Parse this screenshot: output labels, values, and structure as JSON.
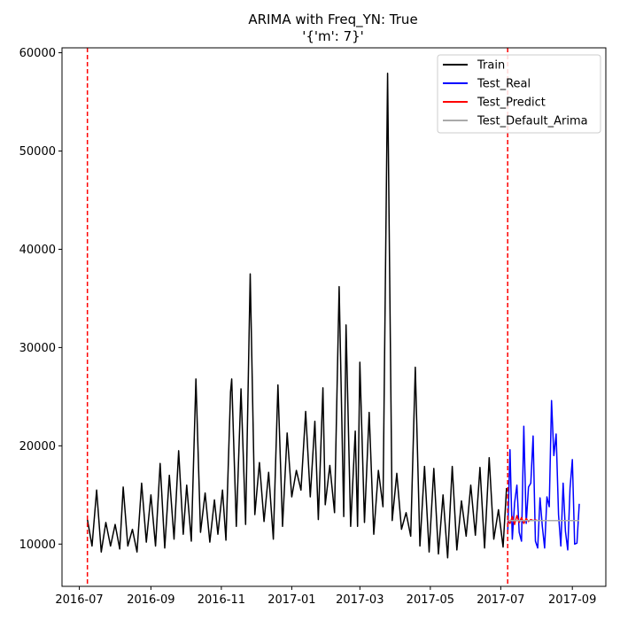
{
  "chart_data": {
    "type": "line",
    "title": "ARIMA with Freq_YN: True",
    "subtitle": "'{'m': 7}'",
    "xlabel": "",
    "ylabel": "",
    "xlim": [
      "2016-06-16",
      "2017-09-30"
    ],
    "ylim": [
      5700,
      60500
    ],
    "x_ticks": [
      "2016-07",
      "2016-09",
      "2016-11",
      "2017-01",
      "2017-03",
      "2017-05",
      "2017-07",
      "2017-09"
    ],
    "y_ticks": [
      10000,
      20000,
      30000,
      40000,
      50000,
      60000
    ],
    "grid": false,
    "legend_position": "top-right",
    "vlines": [
      "2016-07-08",
      "2017-07-07"
    ],
    "vline_color": "#ff0000",
    "series": [
      {
        "name": "Train",
        "color": "#000000",
        "x": [
          "2016-07-08",
          "2016-07-12",
          "2016-07-16",
          "2016-07-20",
          "2016-07-24",
          "2016-07-28",
          "2016-08-01",
          "2016-08-05",
          "2016-08-08",
          "2016-08-12",
          "2016-08-16",
          "2016-08-20",
          "2016-08-24",
          "2016-08-28",
          "2016-09-01",
          "2016-09-05",
          "2016-09-09",
          "2016-09-13",
          "2016-09-17",
          "2016-09-21",
          "2016-09-25",
          "2016-09-29",
          "2016-10-02",
          "2016-10-06",
          "2016-10-10",
          "2016-10-14",
          "2016-10-18",
          "2016-10-22",
          "2016-10-26",
          "2016-10-29",
          "2016-11-02",
          "2016-11-05",
          "2016-11-09",
          "2016-11-10",
          "2016-11-14",
          "2016-11-18",
          "2016-11-22",
          "2016-11-26",
          "2016-11-30",
          "2016-12-04",
          "2016-12-08",
          "2016-12-12",
          "2016-12-16",
          "2016-12-20",
          "2016-12-24",
          "2016-12-28",
          "2017-01-01",
          "2017-01-05",
          "2017-01-09",
          "2017-01-13",
          "2017-01-17",
          "2017-01-21",
          "2017-01-24",
          "2017-01-28",
          "2017-01-30",
          "2017-02-03",
          "2017-02-07",
          "2017-02-11",
          "2017-02-15",
          "2017-02-17",
          "2017-02-21",
          "2017-02-25",
          "2017-02-27",
          "2017-03-01",
          "2017-03-05",
          "2017-03-09",
          "2017-03-13",
          "2017-03-17",
          "2017-03-21",
          "2017-03-25",
          "2017-03-29",
          "2017-04-02",
          "2017-04-06",
          "2017-04-10",
          "2017-04-14",
          "2017-04-18",
          "2017-04-22",
          "2017-04-26",
          "2017-04-30",
          "2017-05-04",
          "2017-05-08",
          "2017-05-12",
          "2017-05-16",
          "2017-05-20",
          "2017-05-24",
          "2017-05-28",
          "2017-06-01",
          "2017-06-05",
          "2017-06-09",
          "2017-06-13",
          "2017-06-17",
          "2017-06-21",
          "2017-06-25",
          "2017-06-29",
          "2017-07-03",
          "2017-07-06"
        ],
        "y": [
          12500,
          9800,
          15500,
          9200,
          12200,
          9800,
          12000,
          9500,
          15800,
          9800,
          11500,
          9200,
          16200,
          10200,
          15000,
          9800,
          18200,
          9600,
          17000,
          10500,
          19500,
          11000,
          16000,
          10300,
          26800,
          11200,
          15200,
          10200,
          14500,
          11000,
          15500,
          10400,
          25500,
          26800,
          11800,
          25800,
          12000,
          37500,
          13000,
          18300,
          12300,
          17300,
          10500,
          26200,
          11800,
          21300,
          14800,
          17500,
          15500,
          23500,
          14800,
          22500,
          12500,
          25900,
          14000,
          18000,
          13200,
          36200,
          12800,
          32300,
          11800,
          21500,
          11800,
          28500,
          12200,
          23400,
          11000,
          17500,
          13800,
          57900,
          12400,
          17200,
          11500,
          13200,
          10800,
          28000,
          9800,
          17900,
          9200,
          17700,
          9000,
          15000,
          8600,
          17900,
          9400,
          14400,
          10800,
          16000,
          10900,
          17800,
          9600,
          18800,
          10500,
          13500,
          9700,
          15700
        ]
      },
      {
        "name": "Test_Real",
        "color": "#0000ff",
        "x": [
          "2017-07-07",
          "2017-07-09",
          "2017-07-11",
          "2017-07-13",
          "2017-07-15",
          "2017-07-17",
          "2017-07-19",
          "2017-07-21",
          "2017-07-23",
          "2017-07-25",
          "2017-07-27",
          "2017-07-29",
          "2017-07-31",
          "2017-08-02",
          "2017-08-04",
          "2017-08-06",
          "2017-08-08",
          "2017-08-10",
          "2017-08-12",
          "2017-08-14",
          "2017-08-16",
          "2017-08-18",
          "2017-08-20",
          "2017-08-22",
          "2017-08-24",
          "2017-08-26",
          "2017-08-28",
          "2017-08-30",
          "2017-09-01",
          "2017-09-03",
          "2017-09-05",
          "2017-09-07"
        ],
        "y": [
          11000,
          19600,
          10500,
          14200,
          16000,
          11200,
          10300,
          22000,
          12100,
          15800,
          16200,
          21000,
          10300,
          9600,
          14700,
          11800,
          9600,
          14800,
          13800,
          24600,
          19000,
          21200,
          13000,
          9800,
          16200,
          11300,
          9400,
          15700,
          18600,
          10000,
          10100,
          14100
        ]
      },
      {
        "name": "Test_Predict",
        "color": "#ff0000",
        "x": [
          "2017-07-07",
          "2017-07-09",
          "2017-07-11",
          "2017-07-13",
          "2017-07-15",
          "2017-07-17",
          "2017-07-19",
          "2017-07-21",
          "2017-07-23",
          "2017-07-25",
          "2017-07-27",
          "2017-07-29",
          "2017-07-31",
          "2017-08-02",
          "2017-08-04",
          "2017-08-06",
          "2017-08-08",
          "2017-08-10",
          "2017-08-12",
          "2017-08-14",
          "2017-08-16",
          "2017-08-18",
          "2017-08-20",
          "2017-08-22",
          "2017-08-24",
          "2017-08-26",
          "2017-08-28",
          "2017-08-30",
          "2017-09-01",
          "2017-09-03",
          "2017-09-05",
          "2017-09-07"
        ],
        "y": [
          12400,
          12100,
          12800,
          12000,
          12900,
          12200,
          12700,
          12100,
          12600,
          12300,
          12500,
          12400,
          12450,
          12400,
          12400,
          12400,
          12400,
          12400,
          12400,
          12400,
          12400,
          12400,
          12400,
          12400,
          12400,
          12400,
          12400,
          12400,
          12400,
          12400,
          12400,
          12400
        ]
      },
      {
        "name": "Test_Default_Arima",
        "color": "#aaaaaa",
        "x": [
          "2017-07-07",
          "2017-09-07"
        ],
        "y": [
          12400,
          12400
        ]
      }
    ]
  }
}
